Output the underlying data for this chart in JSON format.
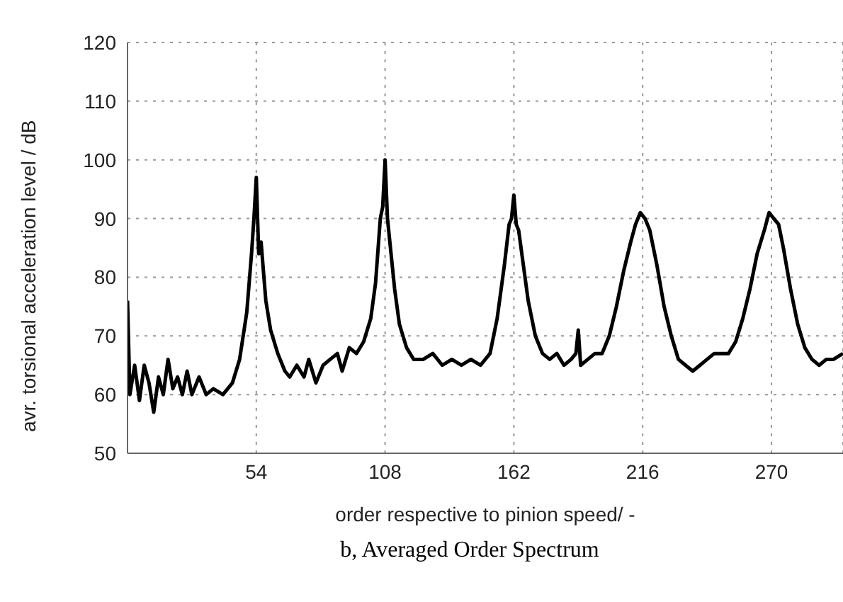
{
  "chart_data": {
    "type": "line",
    "xlabel": "order respective to pinion speed/ -",
    "ylabel": "avr. torsional acceleration level / dB",
    "annotations": [
      "b, Averaged Order Spectrum"
    ],
    "xlim": [
      0,
      300
    ],
    "xticks": [
      54,
      108,
      162,
      216,
      270
    ],
    "ylim": [
      50,
      120
    ],
    "yticks": [
      50,
      60,
      70,
      80,
      90,
      100,
      110,
      120
    ],
    "grid": true,
    "legend": false,
    "marker": "none",
    "line_style": "solid",
    "series": [
      {
        "color": "#000000",
        "x": [
          0,
          1,
          3,
          5,
          7,
          9,
          11,
          13,
          15,
          17,
          19,
          21,
          23,
          25,
          27,
          30,
          33,
          36,
          40,
          44,
          47,
          50,
          52,
          53,
          54,
          55,
          56,
          58,
          60,
          63,
          66,
          68,
          71,
          74,
          76,
          79,
          82,
          85,
          88,
          90,
          93,
          96,
          99,
          102,
          104,
          106,
          107,
          108,
          109,
          110,
          112,
          114,
          117,
          120,
          124,
          128,
          132,
          136,
          140,
          144,
          148,
          152,
          155,
          158,
          160,
          161,
          162,
          163,
          164,
          166,
          168,
          171,
          174,
          177,
          180,
          183,
          186,
          188,
          189,
          190,
          193,
          196,
          199,
          202,
          205,
          208,
          211,
          213,
          215,
          217,
          219,
          222,
          225,
          228,
          231,
          234,
          237,
          240,
          243,
          246,
          249,
          252,
          255,
          258,
          261,
          264,
          267,
          269,
          271,
          273,
          275,
          278,
          281,
          284,
          287,
          290,
          293,
          296,
          300
        ],
        "values": [
          76,
          60,
          65,
          59,
          65,
          62,
          57,
          63,
          60,
          66,
          61,
          63,
          60,
          64,
          60,
          63,
          60,
          61,
          60,
          62,
          66,
          74,
          84,
          90,
          97,
          84,
          86,
          76,
          71,
          67,
          64,
          63,
          65,
          63,
          66,
          62,
          65,
          66,
          67,
          64,
          68,
          67,
          69,
          73,
          79,
          90,
          92,
          100,
          90,
          86,
          78,
          72,
          68,
          66,
          66,
          67,
          65,
          66,
          65,
          66,
          65,
          67,
          73,
          82,
          89,
          90,
          94,
          89,
          88,
          82,
          76,
          70,
          67,
          66,
          67,
          65,
          66,
          67,
          71,
          65,
          66,
          67,
          67,
          70,
          75,
          81,
          86,
          89,
          91,
          90,
          88,
          82,
          75,
          70,
          66,
          65,
          64,
          65,
          66,
          67,
          67,
          67,
          69,
          73,
          78,
          84,
          88,
          91,
          90,
          89,
          85,
          78,
          72,
          68,
          66,
          65,
          66,
          66,
          67
        ]
      }
    ]
  }
}
